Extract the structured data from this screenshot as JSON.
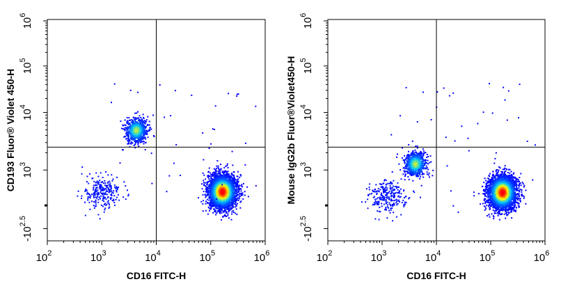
{
  "chart_data": [
    {
      "type": "scatter",
      "style": "density pseudocolor flow cytometry dot plot with quadrant gate",
      "xlabel": "CD16 FITC-H",
      "ylabel": "CD193 Fluor® Violet 450-H",
      "x_scale": "log",
      "y_scale": "biexponential",
      "xlim": [
        100,
        1000000
      ],
      "ylim": [
        -316,
        1000000
      ],
      "x_ticks": [
        {
          "base": "10",
          "exp": "2",
          "value": 100
        },
        {
          "base": "10",
          "exp": "3",
          "value": 1000
        },
        {
          "base": "10",
          "exp": "4",
          "value": 10000
        },
        {
          "base": "10",
          "exp": "5",
          "value": 100000
        },
        {
          "base": "10",
          "exp": "6",
          "value": 1000000
        }
      ],
      "y_ticks": [
        {
          "base": "-10",
          "exp": "2.5",
          "value": -316
        },
        {
          "base": "10",
          "exp": "3",
          "value": 1000
        },
        {
          "base": "10",
          "exp": "4",
          "value": 10000
        },
        {
          "base": "10",
          "exp": "5",
          "value": 100000
        },
        {
          "base": "10",
          "exp": "6",
          "value": 1000000
        }
      ],
      "quadrant_gate": {
        "x": 10000,
        "y": 2500
      },
      "populations": [
        {
          "center_x": 160000,
          "center_y": 400,
          "size": "large",
          "density": "high"
        },
        {
          "center_x": 4200,
          "center_y": 5000,
          "size": "medium",
          "density": "medium"
        },
        {
          "center_x": 1000,
          "center_y": 400,
          "size": "medium",
          "density": "low"
        }
      ]
    },
    {
      "type": "scatter",
      "style": "density pseudocolor flow cytometry dot plot with quadrant gate",
      "xlabel": "CD16 FITC-H",
      "ylabel": "Mouse IgG2b Fluor®Violet450-H",
      "x_scale": "log",
      "y_scale": "biexponential",
      "xlim": [
        100,
        1000000
      ],
      "ylim": [
        -316,
        1000000
      ],
      "x_ticks": [
        {
          "base": "10",
          "exp": "2",
          "value": 100
        },
        {
          "base": "10",
          "exp": "3",
          "value": 1000
        },
        {
          "base": "10",
          "exp": "4",
          "value": 10000
        },
        {
          "base": "10",
          "exp": "5",
          "value": 100000
        },
        {
          "base": "10",
          "exp": "6",
          "value": 1000000
        }
      ],
      "y_ticks": [
        {
          "base": "-10",
          "exp": "2.5",
          "value": -316
        },
        {
          "base": "10",
          "exp": "3",
          "value": 1000
        },
        {
          "base": "10",
          "exp": "4",
          "value": 10000
        },
        {
          "base": "10",
          "exp": "5",
          "value": 100000
        },
        {
          "base": "10",
          "exp": "6",
          "value": 1000000
        }
      ],
      "quadrant_gate": {
        "x": 10000,
        "y": 2500
      },
      "populations": [
        {
          "center_x": 160000,
          "center_y": 380,
          "size": "large",
          "density": "high"
        },
        {
          "center_x": 4000,
          "center_y": 1300,
          "size": "medium",
          "density": "medium"
        },
        {
          "center_x": 1200,
          "center_y": 300,
          "size": "medium",
          "density": "low"
        }
      ]
    }
  ],
  "colors": {
    "axis": "#000000",
    "density_low": "#0000ff",
    "density_mid": "#00c8ff",
    "density_high_mid": "#ffff00",
    "density_high": "#ff0000"
  }
}
